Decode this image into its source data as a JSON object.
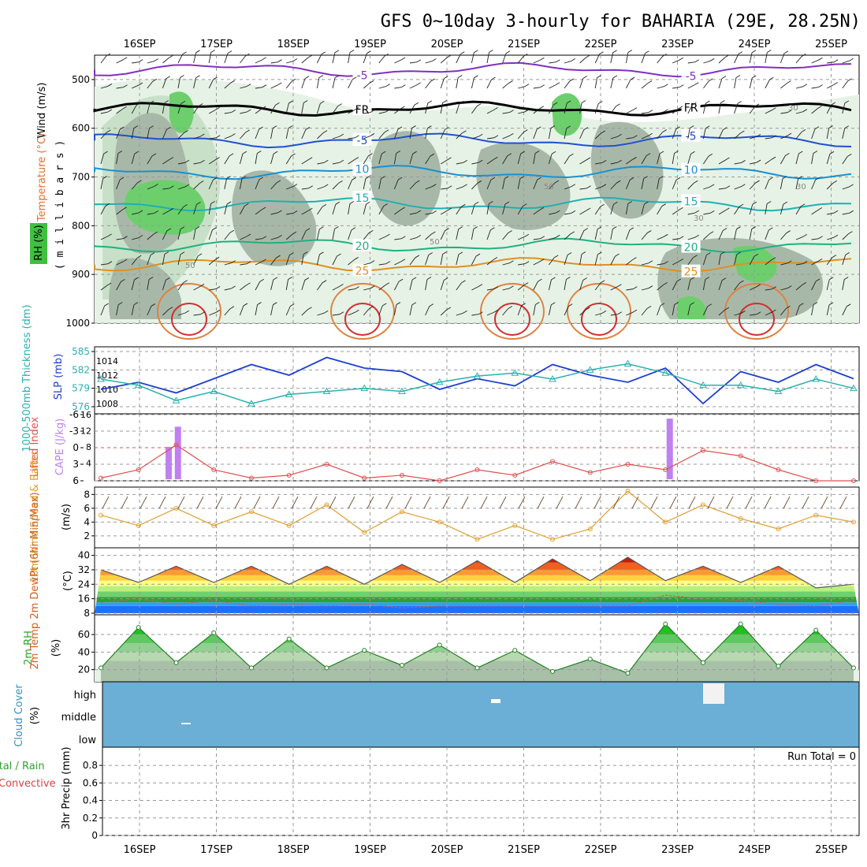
{
  "title": "GFS 0~10day 3-hourly for BAHARIA (29E, 28.25N)",
  "dates": [
    "16SEP",
    "17SEP",
    "18SEP",
    "19SEP",
    "20SEP",
    "21SEP",
    "22SEP",
    "23SEP",
    "24SEP",
    "25SEP"
  ],
  "colors": {
    "rh_green_light": "#e6f2e6",
    "rh_green_mid": "#c8e0c8",
    "rh_gray": "#a8b8a8",
    "rh_green_bright": "#6ccf6c",
    "cloud_blue": "#6baed6",
    "slp_line": "#1f3fd0",
    "thick_line": "#2ab0b0",
    "lifted_line": "#e05050",
    "cape_bar": "#c080f0",
    "wind_line": "#e0a030",
    "rh_fill": "#40d040"
  },
  "chart_data": [
    {
      "panel": "upper-air",
      "type": "heatmap",
      "ylabel": "millibars",
      "ylabel_spaced": "( m i l l i b a r s )",
      "yticks": [
        "500",
        "600",
        "700",
        "800",
        "900",
        "1000"
      ],
      "left_labels": {
        "wind": "Wind (m/s)",
        "temperature": "Temperature (°C)",
        "rh": "RH (%)"
      },
      "isotherms": [
        {
          "label": "-5",
          "level_mb": 480
        },
        {
          "label": "FR",
          "level_mb": 560
        },
        {
          "label": "-5",
          "level_mb": 625
        },
        {
          "label": "10",
          "level_mb": 690
        },
        {
          "label": "15",
          "level_mb": 755
        },
        {
          "label": "20",
          "level_mb": 840
        },
        {
          "label": "25",
          "level_mb": 880
        }
      ],
      "rh_labels": [
        "30",
        "50",
        "30",
        "50",
        "30",
        "50"
      ]
    },
    {
      "panel": "slp-thickness",
      "type": "line",
      "left_label": "1000-500mb Thickness (dm)",
      "right_label": "SLP (mb)",
      "left_ticks": [
        "585",
        "582",
        "579",
        "576"
      ],
      "right_ticks": [
        "1014",
        "1012",
        "1010",
        "1008"
      ],
      "x_days": [
        0,
        0.5,
        1,
        1.5,
        2,
        2.5,
        3,
        3.5,
        4,
        4.5,
        5,
        5.5,
        6,
        6.5,
        7,
        7.5,
        8,
        8.5,
        9,
        9.5,
        10
      ],
      "series": [
        {
          "name": "SLP (mb)",
          "values": [
            1010.0,
            1011.0,
            1009.5,
            1011.5,
            1013.5,
            1012.0,
            1014.5,
            1013.0,
            1012.5,
            1010.0,
            1011.5,
            1010.5,
            1013.5,
            1012.0,
            1011.0,
            1013.0,
            1008.0,
            1012.5,
            1011.0,
            1013.5,
            1011.5
          ]
        },
        {
          "name": "Thickness (dm)",
          "values": [
            580.5,
            579.5,
            577.0,
            578.5,
            576.5,
            578.0,
            578.5,
            579.0,
            578.5,
            580.0,
            581.0,
            581.5,
            580.5,
            582.0,
            583.0,
            581.5,
            579.5,
            579.5,
            578.5,
            580.5,
            579.0
          ]
        }
      ]
    },
    {
      "panel": "stability",
      "type": "line",
      "left_label": "Lifted Index",
      "right_label": "CAPE (J/kg)",
      "left_ticks": [
        "-6",
        "-3",
        "0",
        "3",
        "6"
      ],
      "right_ticks": [
        "16",
        "12",
        "8",
        "4"
      ],
      "x_days": [
        0,
        0.5,
        1,
        1.5,
        2,
        2.5,
        3,
        3.5,
        4,
        4.5,
        5,
        5.5,
        6,
        6.5,
        7,
        7.5,
        8,
        8.5,
        9,
        9.5,
        10
      ],
      "series": [
        {
          "name": "Lifted Index",
          "values": [
            5.5,
            4,
            -0.5,
            4,
            5.5,
            5,
            3,
            5.5,
            5,
            6,
            4,
            5,
            2.5,
            4.5,
            3,
            4,
            0.5,
            1.5,
            4,
            6,
            6
          ]
        },
        {
          "name": "CAPE (J/kg)",
          "bars": [
            {
              "day": 0.38,
              "value": 8
            },
            {
              "day": 0.5,
              "value": 13
            },
            {
              "day": 6.9,
              "value": 15
            }
          ]
        }
      ]
    },
    {
      "panel": "wind10m",
      "type": "line",
      "label": "10m Wind Speed & Barbs",
      "unit": "(m/s)",
      "yticks": [
        "8",
        "6",
        "4",
        "2"
      ],
      "x_days": [
        0,
        0.5,
        1,
        1.5,
        2,
        2.5,
        3,
        3.5,
        4,
        4.5,
        5,
        5.5,
        6,
        6.5,
        7,
        7.5,
        8,
        8.5,
        9,
        9.5,
        10
      ],
      "values": [
        5,
        3.5,
        6,
        3.5,
        5.5,
        3.5,
        6.5,
        2.5,
        5.5,
        4,
        1.5,
        3.5,
        1.5,
        3,
        8.5,
        4,
        6.5,
        4.5,
        3,
        5,
        4
      ]
    },
    {
      "panel": "temperature",
      "type": "area",
      "label": "2m Temp 2m DewPt (6hr Min/Max)",
      "unit": "(°C)",
      "yticks": [
        "40",
        "32",
        "24",
        "16",
        "8"
      ],
      "x_days": [
        0,
        0.5,
        1,
        1.5,
        2,
        2.5,
        3,
        3.5,
        4,
        4.5,
        5,
        5.5,
        6,
        6.5,
        7,
        7.5,
        8,
        8.5,
        9,
        9.5,
        10
      ],
      "series": [
        {
          "name": "2m Temp",
          "values": [
            32,
            25,
            34,
            25,
            34,
            24,
            34,
            24,
            35,
            25,
            37,
            25,
            38,
            26,
            39,
            26,
            34,
            25,
            34,
            22,
            24
          ]
        },
        {
          "name": "2m DewPt",
          "values": [
            14,
            16,
            13,
            15,
            12,
            13,
            12,
            13,
            11,
            12,
            12,
            12,
            12,
            12,
            12,
            18,
            16,
            15,
            13,
            12,
            15
          ]
        }
      ]
    },
    {
      "panel": "rh2m",
      "type": "area",
      "label": "2m RH",
      "unit": "(%)",
      "yticks": [
        "60",
        "40",
        "20"
      ],
      "x_days": [
        0,
        0.5,
        1,
        1.5,
        2,
        2.5,
        3,
        3.5,
        4,
        4.5,
        5,
        5.5,
        6,
        6.5,
        7,
        7.5,
        8,
        8.5,
        9,
        9.5,
        10
      ],
      "values": [
        22,
        68,
        28,
        62,
        22,
        55,
        22,
        42,
        25,
        48,
        22,
        42,
        18,
        32,
        16,
        72,
        28,
        72,
        24,
        65,
        22
      ]
    },
    {
      "panel": "cloud",
      "type": "heatmap",
      "label": "Cloud Cover",
      "unit": "(%)",
      "yticks": [
        "high",
        "middle",
        "low"
      ]
    },
    {
      "panel": "precip",
      "type": "bar",
      "label_total": "Total / Rain",
      "label_convective": "Convective",
      "unit": "3hr Precip (mm)",
      "yticks": [
        "0.8",
        "0.6",
        "0.4",
        "0.2",
        "0"
      ],
      "run_total": "Run Total = 0"
    }
  ]
}
